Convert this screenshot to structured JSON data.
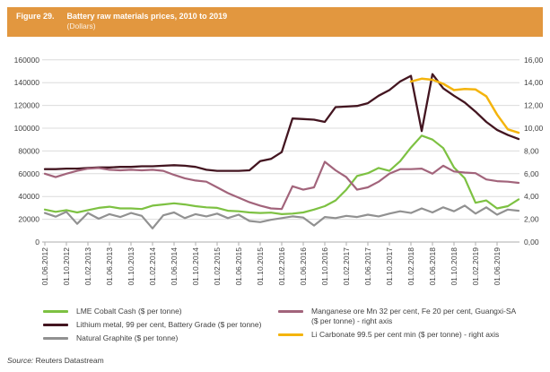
{
  "header": {
    "figure_label": "Figure 29.",
    "title": "Battery raw materials prices, 2010 to 2019",
    "subtitle": "(Dollars)",
    "bg_color": "#E2973F"
  },
  "source": {
    "prefix": "Source:",
    "text": " Reuters Datastream"
  },
  "legend": {
    "columns": [
      {
        "side": "left",
        "items": [
          {
            "label": "LME Cobalt Cash ($ per tonne)",
            "color": "#7DC142"
          },
          {
            "label": "Lithium metal, 99 per cent, Battery Grade ($ per tonne)",
            "color": "#431520"
          },
          {
            "label": "Natural Graphite ($ per tonne)",
            "color": "#919191"
          }
        ]
      },
      {
        "side": "right",
        "items": [
          {
            "label": "Manganese ore Mn 32 per cent, Fe 20 per cent, Guangxi-SA ($ per tonne) - right axis",
            "color": "#A2647B"
          },
          {
            "label": "Li Carbonate 99.5 per cent min ($ per tonne) - right axis",
            "color": "#F4B40D"
          }
        ]
      }
    ]
  },
  "chart_data": {
    "type": "line",
    "title": "Battery raw materials prices, 2010 to 2019 (Dollars)",
    "grid": true,
    "legend_position": "bottom",
    "x_sampling_months": 2,
    "x_start": "01.06.2012",
    "x_tick_labels": [
      "01.06.2012",
      "01.10.2012",
      "01.02.2013",
      "01.06.2013",
      "01.10.2013",
      "01.02.2014",
      "01.06.2014",
      "01.10.2014",
      "01.02.2015",
      "01.06.2015",
      "01.10.2015",
      "01.02.2016",
      "01.06.2016",
      "01.10.2016",
      "01.02.2017",
      "01.06.2017",
      "01.10.2017",
      "01.02.2018",
      "01.06.2018",
      "01.10.2018",
      "01.02.2019",
      "01.06.2019"
    ],
    "left_axis": {
      "min": 0,
      "max": 160000,
      "step": 20000,
      "tick_labels": [
        "0",
        "20000",
        "40000",
        "60000",
        "80000",
        "100000",
        "120000",
        "140000",
        "160000"
      ]
    },
    "right_axis": {
      "min": 0,
      "max": 16,
      "step": 2,
      "tick_labels": [
        "0,00",
        "2,00",
        "4,00",
        "6,00",
        "8,00",
        "10,00",
        "12,00",
        "14,00",
        "16,00"
      ]
    },
    "series": [
      {
        "id": "cobalt",
        "name": "LME Cobalt Cash ($ per tonne)",
        "axis": "left",
        "color": "#7DC142",
        "width": 2.2,
        "values": [
          28500,
          26500,
          28000,
          26000,
          28000,
          30000,
          31000,
          29500,
          29500,
          29000,
          32000,
          33000,
          34000,
          33000,
          31500,
          30500,
          30000,
          27500,
          27000,
          26000,
          25500,
          25800,
          24500,
          25000,
          26000,
          28500,
          31500,
          36500,
          46000,
          58000,
          60500,
          65000,
          62500,
          71000,
          83000,
          93500,
          90000,
          82500,
          65500,
          56000,
          34500,
          36500,
          29500,
          31500,
          37500
        ]
      },
      {
        "id": "lithium",
        "name": "Lithium metal, 99 per cent, Battery Grade ($ per tonne)",
        "axis": "left",
        "color": "#431520",
        "width": 2.3,
        "values": [
          64000,
          64000,
          64500,
          64500,
          65000,
          65500,
          65500,
          66000,
          66000,
          66500,
          66500,
          67000,
          67500,
          67000,
          66000,
          63500,
          62500,
          62500,
          62500,
          63000,
          71000,
          73000,
          79000,
          108500,
          108000,
          107500,
          105500,
          118500,
          119000,
          119500,
          122000,
          128500,
          133500,
          141000,
          146000,
          97500,
          147500,
          135000,
          128500,
          122500,
          114500,
          105500,
          98500,
          94000,
          90500
        ]
      },
      {
        "id": "graphite",
        "name": "Natural Graphite ($ per tonne)",
        "axis": "left",
        "color": "#919191",
        "width": 2.2,
        "values": [
          25500,
          22300,
          26500,
          16000,
          25500,
          20500,
          24500,
          22000,
          25500,
          23000,
          12000,
          23500,
          26000,
          21000,
          24500,
          22500,
          25000,
          21000,
          24000,
          18500,
          17500,
          19500,
          21000,
          22500,
          21500,
          14500,
          22000,
          21000,
          23000,
          22000,
          24000,
          22500,
          25000,
          27000,
          25500,
          29500,
          26000,
          30500,
          27000,
          32000,
          25000,
          30500,
          24000,
          28500,
          27500
        ]
      },
      {
        "id": "manganese",
        "name": "Manganese ore Mn 32 per cent, Fe 20 per cent, Guangxi-SA ($ per tonne) - right axis",
        "axis": "right",
        "color": "#A2647B",
        "width": 2.2,
        "values": [
          6.0,
          5.7,
          6.0,
          6.25,
          6.45,
          6.5,
          6.35,
          6.3,
          6.35,
          6.3,
          6.35,
          6.25,
          5.9,
          5.6,
          5.4,
          5.3,
          4.8,
          4.3,
          3.9,
          3.5,
          3.2,
          2.95,
          2.9,
          4.9,
          4.6,
          4.8,
          7.05,
          6.3,
          5.7,
          4.6,
          4.8,
          5.3,
          6.0,
          6.4,
          6.4,
          6.45,
          6.0,
          6.7,
          6.2,
          6.1,
          6.05,
          5.5,
          5.35,
          5.3,
          5.2
        ]
      },
      {
        "id": "li-carbonate",
        "name": "Li Carbonate 99.5 per cent min ($ per tonne) - right axis",
        "axis": "right",
        "color": "#F4B40D",
        "width": 2.5,
        "values": [
          null,
          null,
          null,
          null,
          null,
          null,
          null,
          null,
          null,
          null,
          null,
          null,
          null,
          null,
          null,
          null,
          null,
          null,
          null,
          null,
          null,
          null,
          null,
          null,
          null,
          null,
          null,
          null,
          null,
          null,
          null,
          null,
          null,
          null,
          14.1,
          14.35,
          14.25,
          13.9,
          13.35,
          13.45,
          13.4,
          12.8,
          11.2,
          9.9,
          9.6
        ]
      }
    ]
  }
}
